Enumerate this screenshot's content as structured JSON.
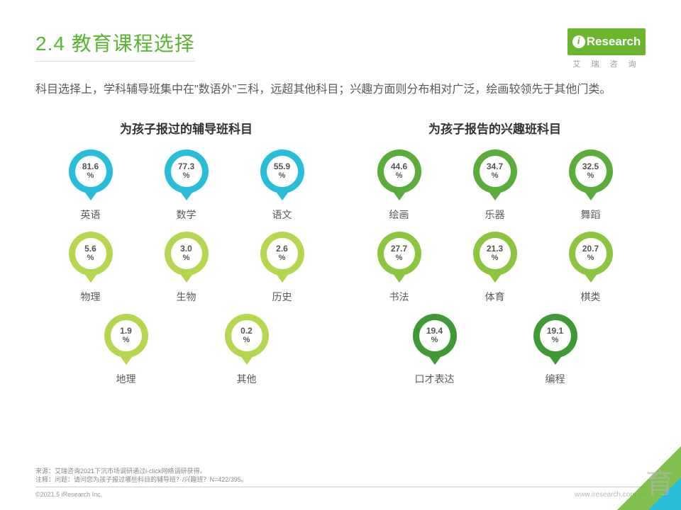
{
  "header": {
    "title": "2.4 教育课程选择",
    "logo_text": "Research",
    "logo_sub": "艾 瑞 咨 询"
  },
  "subtitle": "科目选择上，学科辅导班集中在\"数语外\"三科，远超其他科目；兴趣方面则分布相对广泛，绘画较领先于其他门类。",
  "colors": {
    "cyan": "#29bdd9",
    "green1": "#b7d64f",
    "green2": "#8cc63e",
    "green3": "#5aad3a",
    "green4": "#3f9a36"
  },
  "left": {
    "title": "为孩子报过的辅导班科目",
    "rows": [
      [
        {
          "value": "81.6",
          "pct": "%",
          "label": "英语",
          "colorKey": "cyan"
        },
        {
          "value": "77.3",
          "pct": "%",
          "label": "数学",
          "colorKey": "cyan"
        },
        {
          "value": "55.9",
          "pct": "%",
          "label": "语文",
          "colorKey": "cyan"
        }
      ],
      [
        {
          "value": "5.6",
          "pct": "%",
          "label": "物理",
          "colorKey": "green1"
        },
        {
          "value": "3.0",
          "pct": "%",
          "label": "生物",
          "colorKey": "green1"
        },
        {
          "value": "2.6",
          "pct": "%",
          "label": "历史",
          "colorKey": "green1"
        }
      ],
      [
        {
          "value": "1.9",
          "pct": "%",
          "label": "地理",
          "colorKey": "green1"
        },
        {
          "value": "0.2",
          "pct": "%",
          "label": "其他",
          "colorKey": "green1"
        }
      ]
    ]
  },
  "right": {
    "title": "为孩子报告的兴趣班科目",
    "rows": [
      [
        {
          "value": "44.6",
          "pct": "%",
          "label": "绘画",
          "colorKey": "green3"
        },
        {
          "value": "34.7",
          "pct": "%",
          "label": "乐器",
          "colorKey": "green3"
        },
        {
          "value": "32.5",
          "pct": "%",
          "label": "舞蹈",
          "colorKey": "green3"
        }
      ],
      [
        {
          "value": "27.7",
          "pct": "%",
          "label": "书法",
          "colorKey": "green2"
        },
        {
          "value": "21.3",
          "pct": "%",
          "label": "体育",
          "colorKey": "green2"
        },
        {
          "value": "20.7",
          "pct": "%",
          "label": "棋类",
          "colorKey": "green2"
        }
      ],
      [
        {
          "value": "19.4",
          "pct": "%",
          "label": "口才表达",
          "colorKey": "green4"
        },
        {
          "value": "19.1",
          "pct": "%",
          "label": "编程",
          "colorKey": "green4"
        }
      ]
    ]
  },
  "footer": {
    "line1": "来源：艾瑞咨询2021下沉市场调研通过i-click网络调研获得。",
    "line2": "注释：问题：请问您为孩子报过哪些科目的辅导班？/兴趣班？N=422/395。",
    "copy": "©2021.5 iResearch Inc.",
    "url": "www.iresearch.com.cn"
  },
  "watermark": "育"
}
